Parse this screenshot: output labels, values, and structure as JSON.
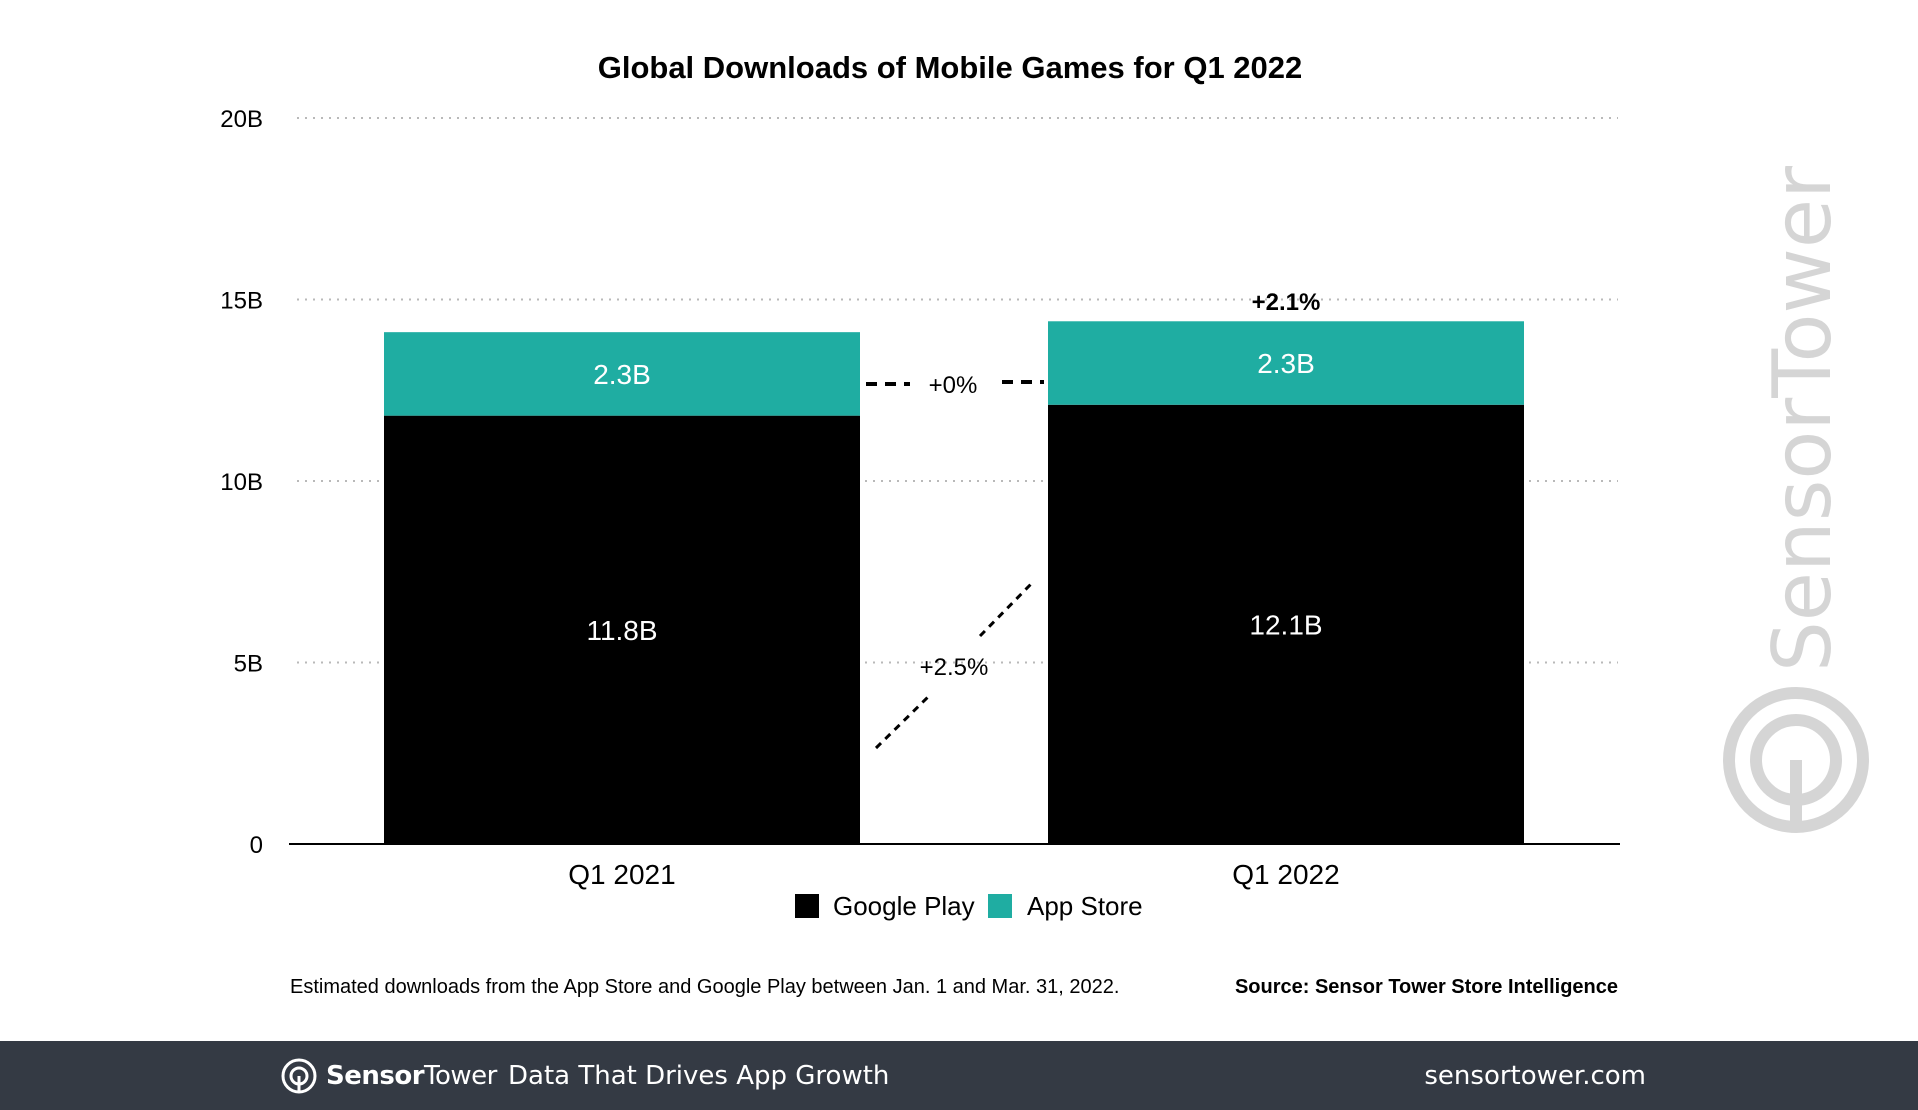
{
  "chart_data": {
    "type": "bar",
    "stacked": true,
    "title": "Global Downloads of Mobile Games for Q1 2022",
    "categories": [
      "Q1 2021",
      "Q1 2022"
    ],
    "series": [
      {
        "name": "Google Play",
        "values": [
          11.8,
          12.1
        ],
        "labels": [
          "11.8B",
          "12.1B"
        ],
        "color": "#000000",
        "label_color": "#ffffff"
      },
      {
        "name": "App Store",
        "values": [
          2.3,
          2.3
        ],
        "labels": [
          "2.3B",
          "2.3B"
        ],
        "color": "#1fada2",
        "label_color": "#ffffff"
      }
    ],
    "ylim": [
      0,
      20
    ],
    "yticks": [
      0,
      5,
      10,
      15,
      20
    ],
    "ytick_labels": [
      "0",
      "5B",
      "10B",
      "15B",
      "20B"
    ],
    "grid": true,
    "legend_placement": "bottom-center",
    "annotations": {
      "total_change": "+2.1%",
      "app_store_change": "+0%",
      "google_play_change": "+2.5%"
    }
  },
  "footnote": "Estimated downloads from the App Store and Google Play between Jan. 1 and Mar. 31, 2022.",
  "source": "Source: Sensor Tower Store Intelligence",
  "watermark": "SensorTower",
  "footer": {
    "logo_bold": "Sensor",
    "logo_regular": "Tower",
    "tagline": "Data That Drives App Growth",
    "url": "sensortower.com"
  }
}
